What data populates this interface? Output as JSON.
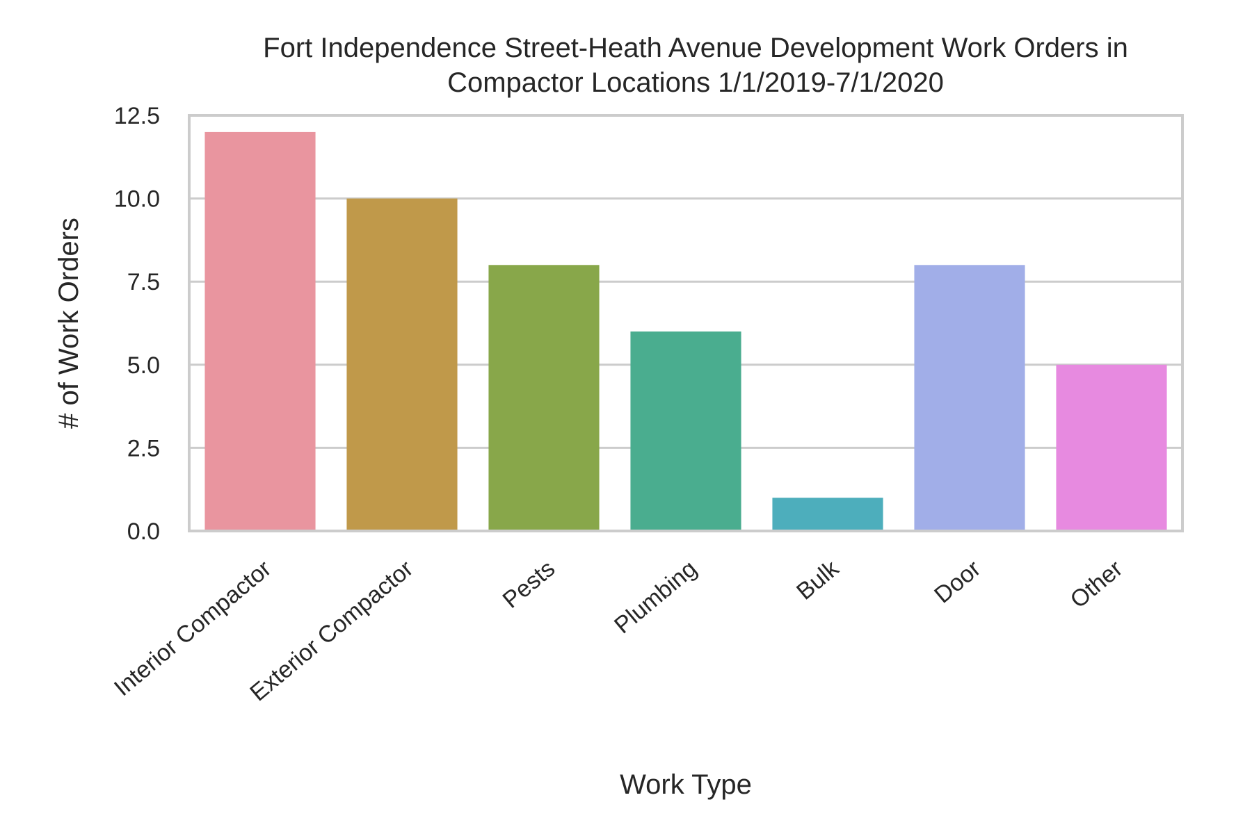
{
  "chart_data": {
    "type": "bar",
    "title_lines": [
      "Fort Independence Street-Heath Avenue Development Work Orders in",
      "Compactor Locations 1/1/2019-7/1/2020"
    ],
    "xlabel": "Work Type",
    "ylabel": "# of Work Orders",
    "categories": [
      "Interior Compactor",
      "Exterior Compactor",
      "Pests",
      "Plumbing",
      "Bulk",
      "Door",
      "Other"
    ],
    "values": [
      12,
      10,
      8,
      6,
      1,
      8,
      5
    ],
    "colors": [
      "#e9959f",
      "#c0994a",
      "#88a74a",
      "#4aad8f",
      "#4daebc",
      "#a1aee8",
      "#e78ae0"
    ],
    "ylim": [
      0,
      12.5
    ],
    "yticks": [
      "0.0",
      "2.5",
      "5.0",
      "7.5",
      "10.0",
      "12.5"
    ],
    "grid": "horizontal",
    "legend": "none"
  }
}
